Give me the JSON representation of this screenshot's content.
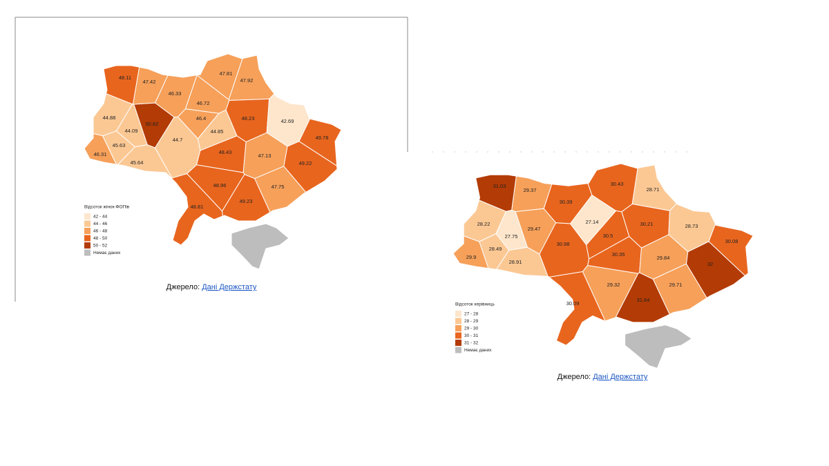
{
  "maps": [
    {
      "legend": {
        "title": "Відсоток жінок-ФОПів",
        "items": [
          {
            "label": "42 - 44",
            "range": [
              42,
              44
            ],
            "color": "#fde6cc"
          },
          {
            "label": "44 - 46",
            "range": [
              44,
              46
            ],
            "color": "#fbc894"
          },
          {
            "label": "46 - 48",
            "range": [
              46,
              48
            ],
            "color": "#f6a05a"
          },
          {
            "label": "48 - 50",
            "range": [
              48,
              50
            ],
            "color": "#e8651e"
          },
          {
            "label": "50 - 52",
            "range": [
              50,
              52
            ],
            "color": "#b33b05"
          }
        ],
        "no_data": {
          "label": "Немає даних",
          "color": "#bdbdbd"
        }
      },
      "values": [
        48.11,
        47.42,
        46.33,
        47.81,
        47.92,
        46.72,
        44.88,
        50.82,
        46.4,
        44.85,
        48.23,
        42.69,
        44.09,
        45.63,
        44.7,
        49.78,
        46.31,
        45.64,
        48.43,
        47.13,
        49.22,
        48.96,
        47.75,
        48.81,
        49.23
      ],
      "source": {
        "prefix": "Джерело:",
        "link": "Дані Держстату"
      }
    },
    {
      "legend": {
        "title": "Відсоток керівниць",
        "items": [
          {
            "label": "27 - 28",
            "range": [
              27,
              28
            ],
            "color": "#fde6cc"
          },
          {
            "label": "28 - 29",
            "range": [
              28,
              29
            ],
            "color": "#fbc894"
          },
          {
            "label": "29 - 30",
            "range": [
              29,
              30
            ],
            "color": "#f6a05a"
          },
          {
            "label": "30 - 31",
            "range": [
              30,
              31
            ],
            "color": "#e8651e"
          },
          {
            "label": "31 - 32",
            "range": [
              31,
              32
            ],
            "color": "#b33b05"
          }
        ],
        "no_data": {
          "label": "Немає даних",
          "color": "#bdbdbd"
        }
      },
      "values": [
        31.03,
        29.37,
        30.39,
        30.43,
        28.71,
        28.22,
        27.75,
        29.47,
        27.14,
        30.21,
        28.73,
        30.5,
        30.08,
        28.49,
        30.98,
        30.35,
        29.84,
        29.9,
        28.91,
        32,
        29.32,
        29.71,
        30.09,
        31.64
      ],
      "source": {
        "prefix": "Джерело:",
        "link": "Дані Держстату"
      }
    }
  ]
}
